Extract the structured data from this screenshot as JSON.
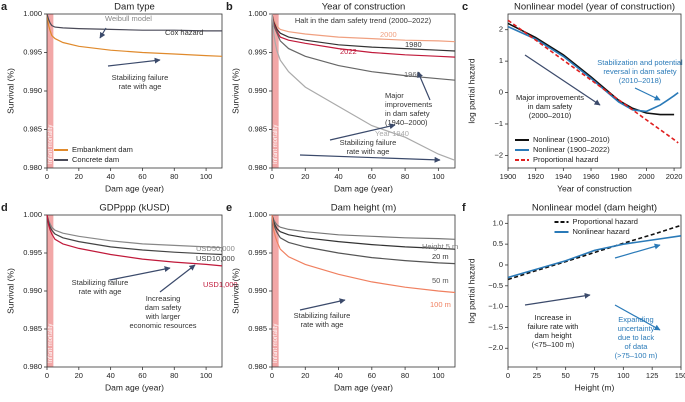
{
  "chart_data": [
    {
      "type": "line",
      "panel_label": "a",
      "title": "Dam type",
      "xlabel": "Dam age (year)",
      "ylabel": "Survival (%)",
      "xlim": [
        0,
        110
      ],
      "xticks": [
        0,
        20,
        40,
        60,
        80,
        100
      ],
      "ylim": [
        0.98,
        1.0
      ],
      "yticks": [
        {
          "value": 0.98,
          "label": "0.980"
        },
        {
          "value": 0.985,
          "label": "0.985"
        },
        {
          "value": 0.99,
          "label": "0.990"
        },
        {
          "value": 0.995,
          "label": "0.995"
        },
        {
          "value": 1.0,
          "label": "1.000"
        }
      ],
      "shade": {
        "label": "Infant mortality",
        "x": [
          0,
          4
        ]
      },
      "legend": "lower left",
      "x": [
        0,
        1,
        2,
        3,
        5,
        10,
        20,
        40,
        60,
        80,
        100,
        110
      ],
      "series": [
        {
          "name": "Embankment dam",
          "color": "#e08a2c",
          "values": [
            1.0,
            0.9985,
            0.9978,
            0.9972,
            0.9968,
            0.9963,
            0.9958,
            0.9953,
            0.995,
            0.9948,
            0.9946,
            0.9945
          ]
        },
        {
          "name": "Concrete dam",
          "color": "#4a4a58",
          "values": [
            1.0,
            0.9993,
            0.9988,
            0.9985,
            0.9983,
            0.9982,
            0.9981,
            0.998,
            0.9979,
            0.9979,
            0.9978,
            0.9978
          ]
        }
      ],
      "annotations": [
        {
          "lines": [
            "Weibull model"
          ]
        },
        {
          "lines": [
            "Cox hazard"
          ]
        },
        {
          "lines": [
            "Stabilizing failure",
            "rate with age"
          ]
        }
      ]
    },
    {
      "type": "line",
      "panel_label": "b",
      "title": "Year of construction",
      "xlabel": "Dam age (year)",
      "ylabel": "Survival (%)",
      "xlim": [
        0,
        110
      ],
      "xticks": [
        0,
        20,
        40,
        60,
        80,
        100
      ],
      "ylim": [
        0.98,
        1.0
      ],
      "yticks": [
        {
          "value": 0.98,
          "label": "0.980"
        },
        {
          "value": 0.985,
          "label": "0.985"
        },
        {
          "value": 0.99,
          "label": "0.990"
        },
        {
          "value": 0.995,
          "label": "0.995"
        },
        {
          "value": 1.0,
          "label": "1.000"
        }
      ],
      "shade": {
        "label": "Infant mortality",
        "x": [
          0,
          4
        ]
      },
      "legend": "inline",
      "x": [
        0,
        1,
        2,
        3,
        5,
        10,
        20,
        40,
        60,
        80,
        100,
        110
      ],
      "series": [
        {
          "name": "2000",
          "color": "#f0a080",
          "values": [
            1.0,
            0.9993,
            0.9988,
            0.9984,
            0.998,
            0.9977,
            0.9974,
            0.997,
            0.9968,
            0.9966,
            0.9965,
            0.9964
          ]
        },
        {
          "name": "1980",
          "color": "#333333",
          "values": [
            1.0,
            0.999,
            0.9985,
            0.998,
            0.9975,
            0.997,
            0.9966,
            0.996,
            0.9957,
            0.9955,
            0.9953,
            0.9952
          ]
        },
        {
          "name": "2022",
          "color": "#c0193a",
          "values": [
            1.0,
            0.9988,
            0.9982,
            0.9977,
            0.997,
            0.9966,
            0.9962,
            0.9955,
            0.995,
            0.9947,
            0.9945,
            0.9944
          ]
        },
        {
          "name": "1960",
          "color": "#666666",
          "values": [
            1.0,
            0.9985,
            0.998,
            0.9975,
            0.9965,
            0.9955,
            0.9945,
            0.9933,
            0.9925,
            0.992,
            0.9916,
            0.9914
          ]
        },
        {
          "name": "Year 1940",
          "color": "#aaaaaa",
          "values": [
            1.0,
            0.9975,
            0.9962,
            0.9952,
            0.994,
            0.9925,
            0.9905,
            0.988,
            0.9855,
            0.984,
            0.9818,
            0.981
          ]
        }
      ],
      "annotations": [
        {
          "lines": [
            "Halt in the dam safety trend (2000–2022)"
          ]
        },
        {
          "lines": [
            "Major",
            "improvements",
            "in dam safety",
            "(1940–2000)"
          ]
        },
        {
          "lines": [
            "Stabilizing failure",
            "rate with age"
          ]
        }
      ]
    },
    {
      "type": "line",
      "panel_label": "c",
      "title": "Nonlinear model (year of construction)",
      "xlabel": "Year of construction",
      "ylabel": "log partial hazard",
      "xlim": [
        1900,
        2025
      ],
      "xticks": [
        1900,
        1920,
        1940,
        1960,
        1980,
        2000,
        2020
      ],
      "ylim": [
        -2.4,
        2.5
      ],
      "yticks": [
        {
          "value": -2,
          "label": "−2"
        },
        {
          "value": -1,
          "label": "−1"
        },
        0,
        1,
        2
      ],
      "legend": "lower left",
      "x": [
        1900,
        1920,
        1940,
        1960,
        1980,
        1990,
        2000,
        2010,
        2015,
        2020,
        2023
      ],
      "series": [
        {
          "name": "Nonlinear (1900–2010)",
          "color": "#111111",
          "values": [
            2.2,
            1.75,
            1.2,
            0.5,
            -0.25,
            -0.5,
            -0.65,
            -0.7,
            -0.7,
            -0.7,
            null
          ]
        },
        {
          "name": "Nonlinear (1900–2022)",
          "color": "#2a7ab8",
          "values": [
            2.1,
            1.7,
            1.15,
            0.45,
            -0.3,
            -0.55,
            -0.6,
            -0.4,
            -0.25,
            -0.1,
            0.0
          ]
        },
        {
          "name": "Proportional hazard",
          "color": "#e02020",
          "dashed": true,
          "values": [
            2.3,
            1.67,
            1.03,
            0.4,
            -0.23,
            -0.55,
            -0.87,
            -1.18,
            -1.34,
            -1.5,
            -1.6
          ]
        }
      ],
      "annotations": [
        {
          "lines": [
            "Stabilization and potential",
            "reversal in dam safety",
            "(2010–2018)"
          ]
        },
        {
          "lines": [
            "Major improvements",
            "in dam safety",
            "(2000–2010)"
          ]
        }
      ]
    },
    {
      "type": "line",
      "panel_label": "d",
      "title": "GDPppp (kUSD)",
      "xlabel": "Dam age (year)",
      "ylabel": "Survival (%)",
      "xlim": [
        0,
        110
      ],
      "xticks": [
        0,
        20,
        40,
        60,
        80,
        100
      ],
      "ylim": [
        0.98,
        1.0
      ],
      "yticks": [
        {
          "value": 0.98,
          "label": "0.980"
        },
        {
          "value": 0.985,
          "label": "0.985"
        },
        {
          "value": 0.99,
          "label": "0.990"
        },
        {
          "value": 0.995,
          "label": "0.995"
        },
        {
          "value": 1.0,
          "label": "1.000"
        }
      ],
      "shade": {
        "label": "Infant mortality",
        "x": [
          0,
          4
        ]
      },
      "legend": "inline",
      "x": [
        0,
        1,
        2,
        3,
        5,
        10,
        20,
        40,
        60,
        80,
        100,
        110
      ],
      "series": [
        {
          "name": "USD50,000",
          "color": "#888888",
          "values": [
            1.0,
            0.9993,
            0.9988,
            0.9984,
            0.998,
            0.9976,
            0.9972,
            0.9966,
            0.9962,
            0.996,
            0.9958,
            0.9957
          ]
        },
        {
          "name": "USD10,000",
          "color": "#444444",
          "values": [
            1.0,
            0.999,
            0.9984,
            0.998,
            0.9975,
            0.997,
            0.9965,
            0.9958,
            0.9954,
            0.9951,
            0.9949,
            0.9948
          ]
        },
        {
          "name": "USD1,000",
          "color": "#c0193a",
          "values": [
            1.0,
            0.9987,
            0.998,
            0.9975,
            0.9968,
            0.9962,
            0.9956,
            0.9948,
            0.9942,
            0.9938,
            0.9935,
            0.9933
          ]
        }
      ],
      "annotations": [
        {
          "lines": [
            "Stabilizing failure",
            "rate with age"
          ]
        },
        {
          "lines": [
            "Increasing",
            "dam safety",
            "with larger",
            "economic resources"
          ]
        }
      ]
    },
    {
      "type": "line",
      "panel_label": "e",
      "title": "Dam height (m)",
      "xlabel": "Dam age (year)",
      "ylabel": "Survival (%)",
      "xlim": [
        0,
        110
      ],
      "xticks": [
        0,
        20,
        40,
        60,
        80,
        100
      ],
      "ylim": [
        0.98,
        1.0
      ],
      "yticks": [
        {
          "value": 0.98,
          "label": "0.980"
        },
        {
          "value": 0.985,
          "label": "0.985"
        },
        {
          "value": 0.99,
          "label": "0.990"
        },
        {
          "value": 0.995,
          "label": "0.995"
        },
        {
          "value": 1.0,
          "label": "1.000"
        }
      ],
      "shade": {
        "label": "Infant mortality",
        "x": [
          0,
          4
        ]
      },
      "legend": "inline",
      "x": [
        0,
        1,
        2,
        3,
        5,
        10,
        20,
        40,
        60,
        80,
        100,
        110
      ],
      "series": [
        {
          "name": "Height 5 m",
          "color": "#777777",
          "values": [
            1.0,
            0.9994,
            0.999,
            0.9987,
            0.9984,
            0.9981,
            0.9978,
            0.9974,
            0.9972,
            0.997,
            0.9969,
            0.9968
          ]
        },
        {
          "name": "20 m",
          "color": "#333333",
          "values": [
            1.0,
            0.9991,
            0.9986,
            0.9982,
            0.9978,
            0.9974,
            0.997,
            0.9965,
            0.9961,
            0.9958,
            0.9956,
            0.9955
          ]
        },
        {
          "name": "50 m",
          "color": "#555555",
          "values": [
            1.0,
            0.9988,
            0.9982,
            0.9977,
            0.997,
            0.9964,
            0.9958,
            0.995,
            0.9944,
            0.994,
            0.9937,
            0.9936
          ]
        },
        {
          "name": "100 m",
          "color": "#f08060",
          "values": [
            1.0,
            0.998,
            0.9972,
            0.9965,
            0.9955,
            0.9945,
            0.9935,
            0.9922,
            0.9912,
            0.9905,
            0.99,
            0.9898
          ]
        }
      ],
      "annotations": [
        {
          "lines": [
            "Stabilizing failure",
            "rate with age"
          ]
        }
      ]
    },
    {
      "type": "line",
      "panel_label": "f",
      "title": "Nonlinear model (dam height)",
      "xlabel": "Height (m)",
      "ylabel": "log partial hazard",
      "xlim": [
        0,
        150
      ],
      "xticks": [
        0,
        25,
        50,
        75,
        100,
        125,
        150
      ],
      "ylim": [
        -2.45,
        1.2
      ],
      "yticks": [
        {
          "value": -2,
          "label": "−2.0"
        },
        {
          "value": -1.5,
          "label": "−1.5"
        },
        {
          "value": -1,
          "label": "−1.0"
        },
        {
          "value": -0.5,
          "label": "−0.5"
        },
        0,
        0.5,
        {
          "value": 1,
          "label": "1.0"
        }
      ],
      "legend": "upper center",
      "x": [
        0,
        25,
        50,
        75,
        100,
        125,
        150
      ],
      "series": [
        {
          "name": "Proportional hazard",
          "color": "#111111",
          "dashed": true,
          "values": [
            -0.35,
            -0.13,
            0.08,
            0.3,
            0.52,
            0.73,
            0.95
          ]
        },
        {
          "name": "Nonlinear hazard",
          "color": "#2a7ab8",
          "values": [
            -0.3,
            -0.1,
            0.1,
            0.35,
            0.5,
            0.6,
            0.7
          ]
        }
      ],
      "annotations": [
        {
          "lines": [
            "Increase in",
            "failure rate with",
            "dam height",
            "(<75–100 m)"
          ]
        },
        {
          "lines": [
            "Expanding",
            "uncertainty",
            "due to lack",
            "of data",
            "(>75–100 m)"
          ]
        }
      ]
    }
  ]
}
